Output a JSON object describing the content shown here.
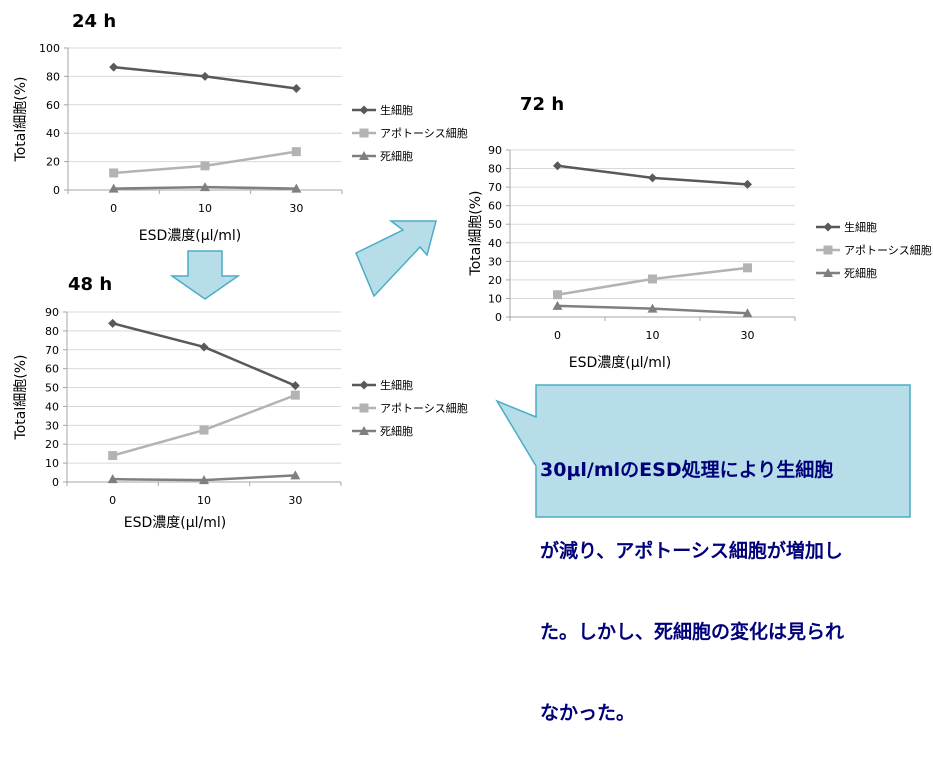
{
  "colors": {
    "series_1": "#595959",
    "series_2": "#b3b3b3",
    "series_3": "#7f7f7f",
    "grid": "#d9d9d9",
    "axis": "#a6a6a6",
    "arrow_fill": "#b7dee8",
    "arrow_stroke": "#4bacc6",
    "callout_fill": "#b7dee8",
    "callout_stroke": "#4bacc6",
    "callout_text": "#00007a"
  },
  "chart_data": [
    {
      "title": "24 h",
      "type": "line",
      "xlabel": "ESD濃度(μl/ml)",
      "ylabel": "Total細胞(%)",
      "categories": [
        "0",
        "10",
        "30"
      ],
      "ylim": [
        0,
        100
      ],
      "yticks": [
        0,
        20,
        40,
        60,
        80,
        100
      ],
      "grid": true,
      "legend_position": "right",
      "series": [
        {
          "name": "生細胞",
          "values": [
            86.5,
            80,
            71.5
          ],
          "marker": "diamond"
        },
        {
          "name": "アポトーシス細胞",
          "values": [
            12,
            17,
            27
          ],
          "marker": "square"
        },
        {
          "name": "死細胞",
          "values": [
            1,
            2,
            1
          ],
          "marker": "triangle"
        }
      ]
    },
    {
      "title": "48 h",
      "type": "line",
      "xlabel": "ESD濃度(μl/ml)",
      "ylabel": "Total細胞(%)",
      "categories": [
        "0",
        "10",
        "30"
      ],
      "ylim": [
        0,
        90
      ],
      "yticks": [
        0,
        10,
        20,
        30,
        40,
        50,
        60,
        70,
        80,
        90
      ],
      "grid": true,
      "legend_position": "right",
      "series": [
        {
          "name": "生細胞",
          "values": [
            84,
            71.5,
            51
          ],
          "marker": "diamond"
        },
        {
          "name": "アポトーシス細胞",
          "values": [
            14,
            27.5,
            46
          ],
          "marker": "square"
        },
        {
          "name": "死細胞",
          "values": [
            1.5,
            1,
            3.5
          ],
          "marker": "triangle"
        }
      ]
    },
    {
      "title": "72 h",
      "type": "line",
      "xlabel": "ESD濃度(μl/ml)",
      "ylabel": "Total細胞(%)",
      "categories": [
        "0",
        "10",
        "30"
      ],
      "ylim": [
        0,
        90
      ],
      "yticks": [
        0,
        10,
        20,
        30,
        40,
        50,
        60,
        70,
        80,
        90
      ],
      "grid": true,
      "legend_position": "right",
      "series": [
        {
          "name": "生細胞",
          "values": [
            81.5,
            75,
            71.5
          ],
          "marker": "diamond"
        },
        {
          "name": "アポトーシス細胞",
          "values": [
            12,
            20.5,
            26.5
          ],
          "marker": "square"
        },
        {
          "name": "死細胞",
          "values": [
            6,
            4.5,
            2
          ],
          "marker": "triangle"
        }
      ]
    }
  ],
  "callout": {
    "lines": [
      "30μl/mlのESD処理により生細胞",
      "が減り、アポトーシス細胞が増加し",
      "た。しかし、死細胞の変化は見られ",
      "なかった。"
    ]
  }
}
